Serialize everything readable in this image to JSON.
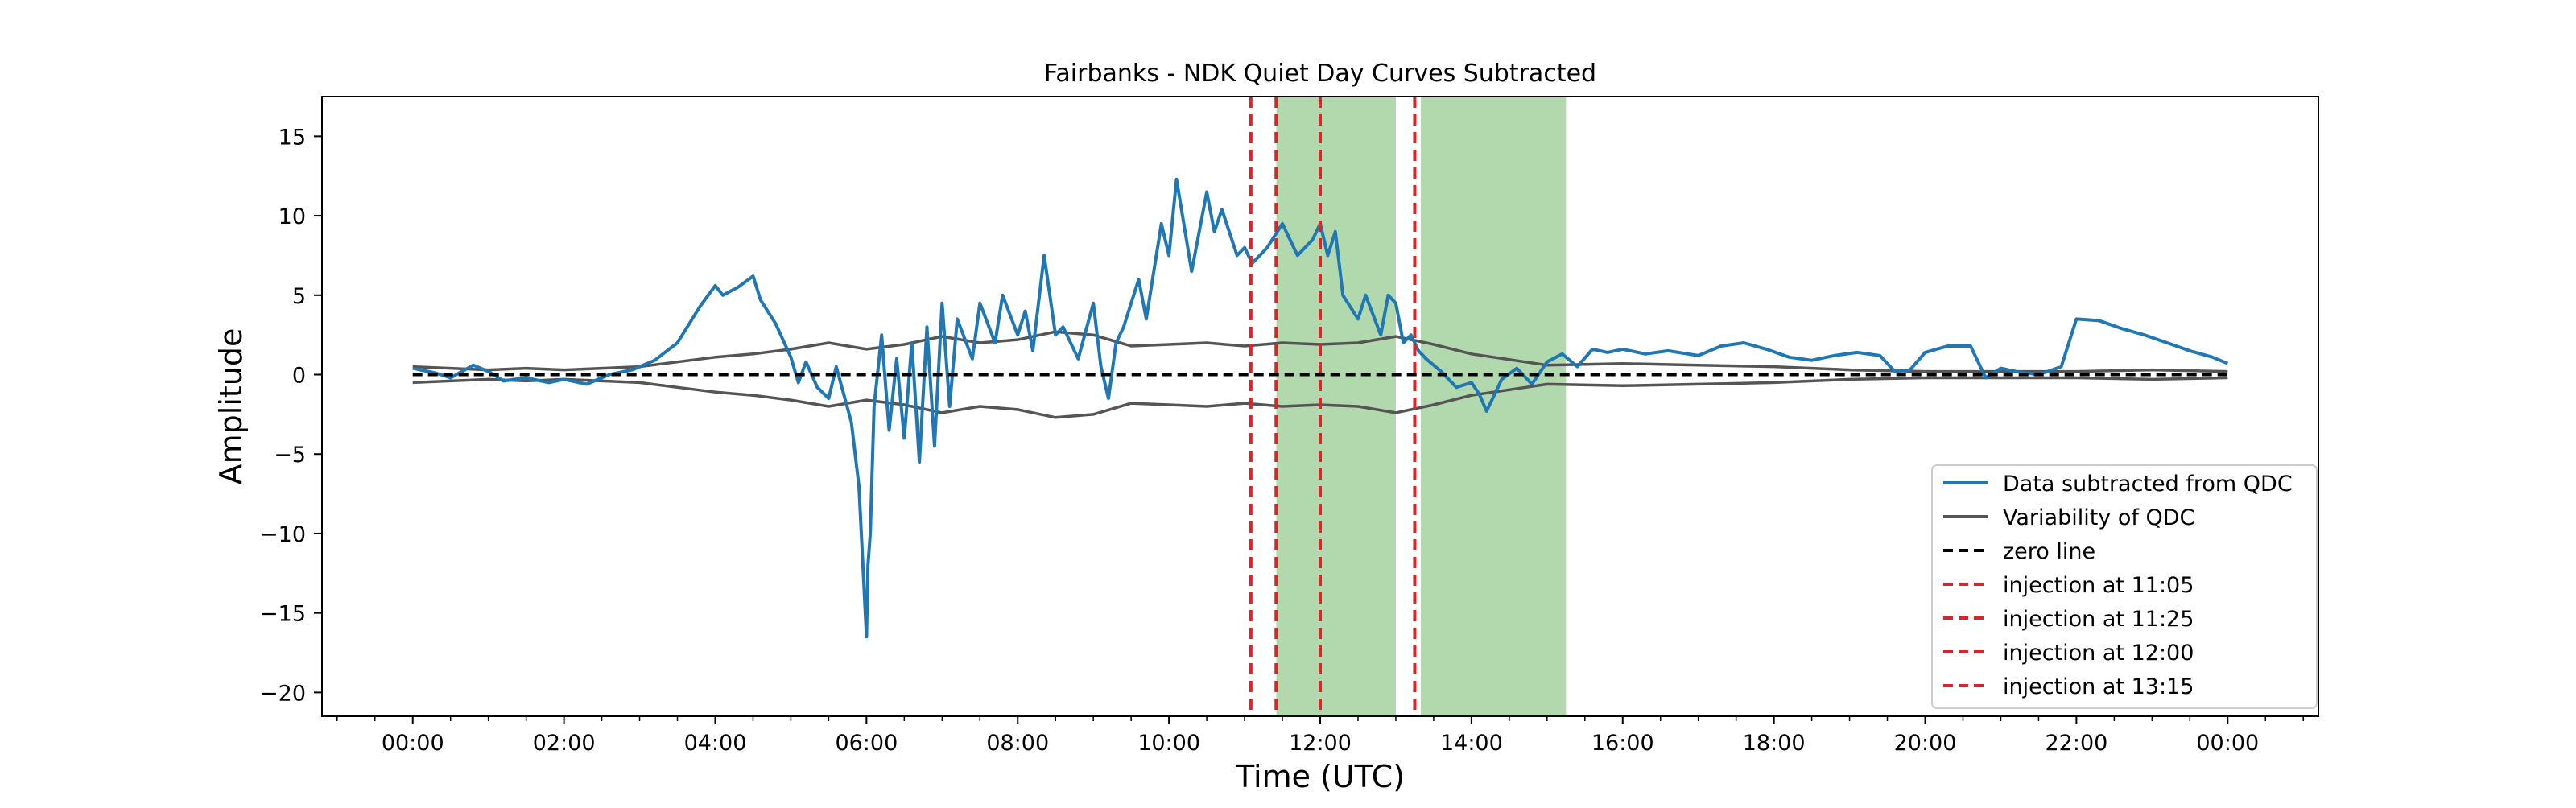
{
  "chart_data": {
    "type": "line",
    "title": "Fairbanks - NDK Quiet Day Curves Subtracted",
    "xlabel": "Time (UTC)",
    "ylabel": "Amplitude",
    "x_unit": "hours UTC",
    "xlim": [
      -1.2,
      25.2
    ],
    "ylim": [
      -21.5,
      17.5
    ],
    "x_ticks": [
      {
        "x": 0,
        "label": "00:00"
      },
      {
        "x": 2,
        "label": "02:00"
      },
      {
        "x": 4,
        "label": "04:00"
      },
      {
        "x": 6,
        "label": "06:00"
      },
      {
        "x": 8,
        "label": "08:00"
      },
      {
        "x": 10,
        "label": "10:00"
      },
      {
        "x": 12,
        "label": "12:00"
      },
      {
        "x": 14,
        "label": "14:00"
      },
      {
        "x": 16,
        "label": "16:00"
      },
      {
        "x": 18,
        "label": "18:00"
      },
      {
        "x": 20,
        "label": "20:00"
      },
      {
        "x": 22,
        "label": "22:00"
      },
      {
        "x": 24,
        "label": "00:00"
      }
    ],
    "y_ticks": [
      {
        "y": 15,
        "label": "15"
      },
      {
        "y": 10,
        "label": "10"
      },
      {
        "y": 5,
        "label": "5"
      },
      {
        "y": 0,
        "label": "0"
      },
      {
        "y": -5,
        "label": "−5"
      },
      {
        "y": -10,
        "label": "−10"
      },
      {
        "y": -15,
        "label": "−15"
      },
      {
        "y": -20,
        "label": "−20"
      }
    ],
    "grid": false,
    "legend_position": "lower-right",
    "shaded_regions": [
      {
        "x_start": 11.42,
        "x_end": 13.0,
        "color": "#b2d8ae"
      },
      {
        "x_start": 13.33,
        "x_end": 15.25,
        "color": "#b2d8ae"
      }
    ],
    "series": [
      {
        "name": "Data subtracted from QDC",
        "color": "#1f77b4",
        "style": "solid",
        "x": [
          0.0,
          0.3,
          0.5,
          0.8,
          1.0,
          1.2,
          1.5,
          1.8,
          2.0,
          2.3,
          2.6,
          2.9,
          3.2,
          3.5,
          3.8,
          4.0,
          4.1,
          4.3,
          4.5,
          4.6,
          4.8,
          5.0,
          5.1,
          5.2,
          5.35,
          5.5,
          5.6,
          5.8,
          5.9,
          6.0,
          6.02,
          6.05,
          6.1,
          6.2,
          6.3,
          6.4,
          6.5,
          6.6,
          6.7,
          6.8,
          6.9,
          7.0,
          7.1,
          7.2,
          7.4,
          7.5,
          7.7,
          7.8,
          8.0,
          8.1,
          8.2,
          8.35,
          8.5,
          8.6,
          8.8,
          9.0,
          9.1,
          9.2,
          9.3,
          9.4,
          9.6,
          9.7,
          9.9,
          10.0,
          10.1,
          10.3,
          10.5,
          10.6,
          10.7,
          10.9,
          11.0,
          11.1,
          11.3,
          11.5,
          11.7,
          11.9,
          12.0,
          12.1,
          12.2,
          12.3,
          12.5,
          12.6,
          12.8,
          12.9,
          13.0,
          13.1,
          13.2,
          13.3,
          13.4,
          13.6,
          13.8,
          14.0,
          14.1,
          14.2,
          14.4,
          14.6,
          14.8,
          15.0,
          15.2,
          15.4,
          15.6,
          15.8,
          16.0,
          16.3,
          16.6,
          17.0,
          17.3,
          17.6,
          17.9,
          18.2,
          18.5,
          18.8,
          19.1,
          19.4,
          19.6,
          19.8,
          20.0,
          20.3,
          20.6,
          20.8,
          21.0,
          21.2,
          21.5,
          21.8,
          22.0,
          22.3,
          22.6,
          22.9,
          23.2,
          23.5,
          23.8,
          24.0
        ],
        "y": [
          0.4,
          0.1,
          -0.2,
          0.6,
          0.2,
          -0.4,
          -0.2,
          -0.5,
          -0.3,
          -0.6,
          0.0,
          0.3,
          0.9,
          2.0,
          4.3,
          5.6,
          5.0,
          5.5,
          6.2,
          4.7,
          3.2,
          1.1,
          -0.5,
          0.8,
          -0.8,
          -1.5,
          0.5,
          -3.0,
          -7.0,
          -16.5,
          -12.0,
          -10.0,
          -2.0,
          2.5,
          -3.5,
          1.0,
          -4.0,
          2.0,
          -5.5,
          3.0,
          -4.5,
          4.5,
          -2.0,
          3.5,
          1.0,
          4.5,
          2.0,
          5.0,
          2.5,
          4.0,
          1.5,
          7.5,
          2.5,
          3.0,
          1.0,
          4.5,
          0.5,
          -1.5,
          2.0,
          3.0,
          6.0,
          3.5,
          9.5,
          7.5,
          12.3,
          6.5,
          11.5,
          9.0,
          10.4,
          7.5,
          8.0,
          7.0,
          8.0,
          9.5,
          7.5,
          8.5,
          9.5,
          7.5,
          9.0,
          5.0,
          3.5,
          5.0,
          2.5,
          5.0,
          4.5,
          2.0,
          2.5,
          1.5,
          1.0,
          0.2,
          -0.8,
          -0.5,
          -1.2,
          -2.3,
          -0.3,
          0.4,
          -0.6,
          0.8,
          1.3,
          0.5,
          1.6,
          1.4,
          1.6,
          1.3,
          1.5,
          1.2,
          1.8,
          2.0,
          1.6,
          1.1,
          0.9,
          1.2,
          1.4,
          1.2,
          0.2,
          0.3,
          1.4,
          1.8,
          1.8,
          -0.2,
          0.4,
          0.2,
          0.0,
          0.5,
          3.5,
          3.4,
          2.9,
          2.5,
          2.0,
          1.5,
          1.1,
          0.7
        ]
      },
      {
        "name": "Variability of QDC",
        "color": "#555555",
        "style": "solid",
        "x": [
          0.0,
          0.5,
          1.0,
          1.5,
          2.0,
          2.5,
          3.0,
          3.5,
          4.0,
          4.5,
          5.0,
          5.5,
          6.0,
          6.5,
          7.0,
          7.5,
          8.0,
          8.5,
          9.0,
          9.5,
          10.0,
          10.5,
          11.0,
          11.5,
          12.0,
          12.5,
          13.0,
          13.5,
          14.0,
          15.0,
          16.0,
          17.0,
          18.0,
          19.0,
          20.0,
          21.0,
          22.0,
          23.0,
          24.0
        ],
        "y": [
          0.5,
          0.4,
          0.3,
          0.4,
          0.3,
          0.4,
          0.5,
          0.8,
          1.1,
          1.3,
          1.6,
          2.0,
          1.6,
          1.9,
          2.4,
          2.0,
          2.2,
          2.7,
          2.5,
          1.8,
          1.9,
          2.0,
          1.8,
          2.0,
          1.9,
          2.0,
          2.4,
          1.9,
          1.3,
          0.6,
          0.7,
          0.6,
          0.5,
          0.3,
          0.2,
          0.2,
          0.2,
          0.3,
          0.2
        ]
      },
      {
        "name": "",
        "color": "#555555",
        "style": "solid",
        "x": [
          0.0,
          0.5,
          1.0,
          1.5,
          2.0,
          2.5,
          3.0,
          3.5,
          4.0,
          4.5,
          5.0,
          5.5,
          6.0,
          6.5,
          7.0,
          7.5,
          8.0,
          8.5,
          9.0,
          9.5,
          10.0,
          10.5,
          11.0,
          11.5,
          12.0,
          12.5,
          13.0,
          13.5,
          14.0,
          15.0,
          16.0,
          17.0,
          18.0,
          19.0,
          20.0,
          21.0,
          22.0,
          23.0,
          24.0
        ],
        "y": [
          -0.5,
          -0.4,
          -0.3,
          -0.4,
          -0.3,
          -0.4,
          -0.5,
          -0.8,
          -1.1,
          -1.3,
          -1.6,
          -2.0,
          -1.6,
          -1.9,
          -2.4,
          -2.0,
          -2.2,
          -2.7,
          -2.5,
          -1.8,
          -1.9,
          -2.0,
          -1.8,
          -2.0,
          -1.9,
          -2.0,
          -2.4,
          -1.9,
          -1.3,
          -0.6,
          -0.7,
          -0.6,
          -0.5,
          -0.3,
          -0.2,
          -0.2,
          -0.2,
          -0.3,
          -0.2
        ]
      },
      {
        "name": "zero line",
        "color": "#000000",
        "style": "dashed",
        "x": [
          0,
          24
        ],
        "y": [
          0,
          0
        ]
      }
    ],
    "vertical_lines": [
      {
        "name": "injection at 11:05",
        "x": 11.083,
        "color": "#d62728",
        "style": "dashed"
      },
      {
        "name": "injection at 11:25",
        "x": 11.417,
        "color": "#d62728",
        "style": "dashed"
      },
      {
        "name": "injection at 12:00",
        "x": 12.0,
        "color": "#d62728",
        "style": "dashed"
      },
      {
        "name": "injection at 13:15",
        "x": 13.25,
        "color": "#d62728",
        "style": "dashed"
      }
    ],
    "legend": [
      {
        "label": "Data subtracted from QDC",
        "color": "#1f77b4",
        "style": "solid"
      },
      {
        "label": "Variability of QDC",
        "color": "#555555",
        "style": "solid"
      },
      {
        "label": "zero line",
        "color": "#000000",
        "style": "dashed"
      },
      {
        "label": "injection at 11:05",
        "color": "#d62728",
        "style": "dashed"
      },
      {
        "label": "injection at 11:25",
        "color": "#d62728",
        "style": "dashed"
      },
      {
        "label": "injection at 12:00",
        "color": "#d62728",
        "style": "dashed"
      },
      {
        "label": "injection at 13:15",
        "color": "#d62728",
        "style": "dashed"
      }
    ]
  }
}
